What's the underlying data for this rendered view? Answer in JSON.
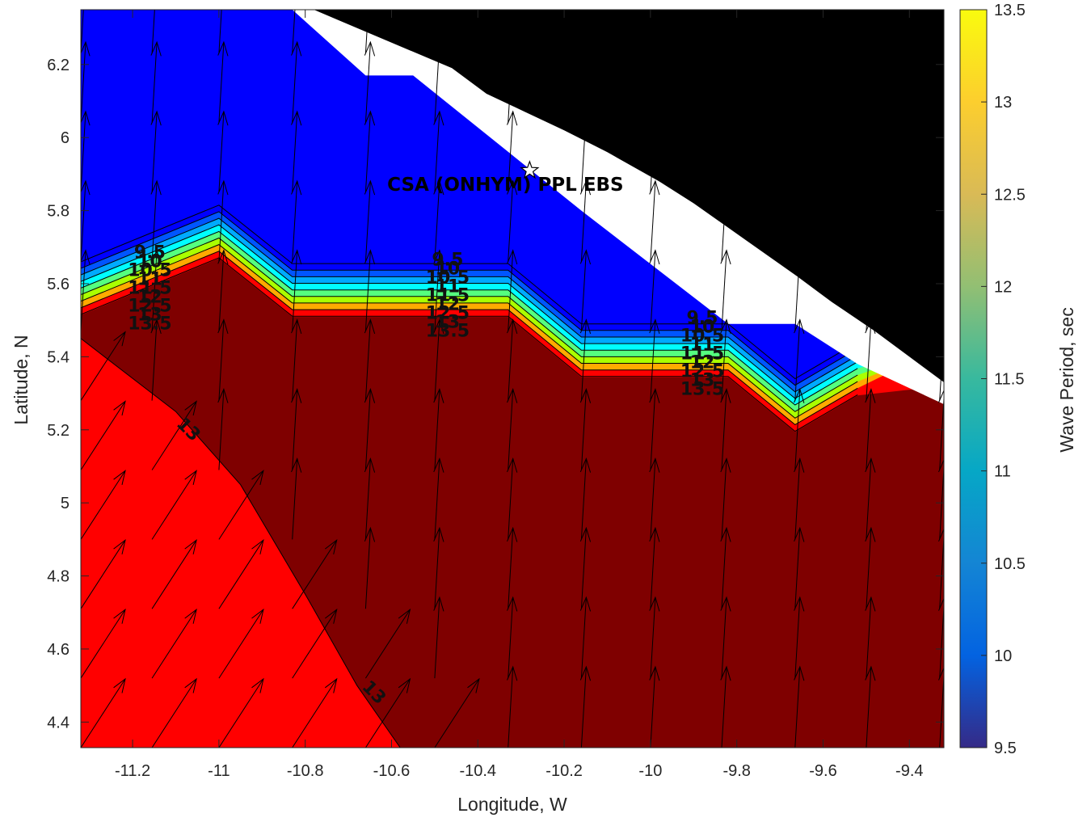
{
  "chart_data": {
    "type": "heatmap",
    "subtype": "filled-contour map with wave direction vectors",
    "xlabel": "Longitude, W",
    "ylabel": "Latitude, N",
    "xlim": [
      -11.32,
      -9.32
    ],
    "ylim": [
      4.33,
      6.35
    ],
    "xticks": [
      -11.2,
      -11,
      -10.8,
      -10.6,
      -10.4,
      -10.2,
      -10,
      -9.8,
      -9.6,
      -9.4
    ],
    "xtick_labels": [
      "-11.2",
      "-11",
      "-10.8",
      "-10.6",
      "-10.4",
      "-10.2",
      "-10",
      "-9.8",
      "-9.6",
      "-9.4"
    ],
    "yticks": [
      4.4,
      4.6,
      4.8,
      5,
      5.2,
      5.4,
      5.6,
      5.8,
      6,
      6.2
    ],
    "ytick_labels": [
      "4.4",
      "4.6",
      "4.8",
      "5",
      "5.2",
      "5.4",
      "5.6",
      "5.8",
      "6",
      "6.2"
    ],
    "colorbar": {
      "label": "Wave Period, sec",
      "range": [
        9.5,
        13.5
      ],
      "ticks": [
        9.5,
        10,
        10.5,
        11,
        11.5,
        12,
        12.5,
        13,
        13.5
      ],
      "tick_labels": [
        "9.5",
        "10",
        "10.5",
        "11",
        "11.5",
        "12",
        "12.5",
        "13",
        "13.5"
      ],
      "colormap": "parula",
      "stops": [
        "#352a87",
        "#0363e1",
        "#1485d4",
        "#06a7c6",
        "#38b99e",
        "#92bf73",
        "#d9ba56",
        "#fcce2e",
        "#f9fb0e"
      ]
    },
    "fill_levels": [
      {
        "min": 9.5,
        "color": "#0000ff"
      },
      {
        "min": 10.0,
        "color": "#0055ff"
      },
      {
        "min": 10.5,
        "color": "#00aaff"
      },
      {
        "min": 11.0,
        "color": "#00ffff"
      },
      {
        "min": 11.5,
        "color": "#55ff7f"
      },
      {
        "min": 12.0,
        "color": "#aaff00"
      },
      {
        "min": 12.5,
        "color": "#ffaa00"
      },
      {
        "min": 13.0,
        "color": "#ff0000"
      },
      {
        "min": 13.5,
        "color": "#7f0000"
      }
    ],
    "contour_lines": [
      9.5,
      10,
      10.5,
      11,
      11.5,
      12,
      12.5,
      13,
      13.5
    ],
    "contour_labels": [
      "9.5",
      "10",
      "10.5",
      "11",
      "11.5",
      "12",
      "12.5",
      "13",
      "13.5"
    ],
    "annotation": {
      "text": "CSA (ONHYM) PPL EBS",
      "marker": "white-star",
      "lon": -10.28,
      "lat": 5.91
    },
    "land_color": "#000000",
    "vector_field": "wave direction arrows (northward inshore, north-east offshore)"
  }
}
